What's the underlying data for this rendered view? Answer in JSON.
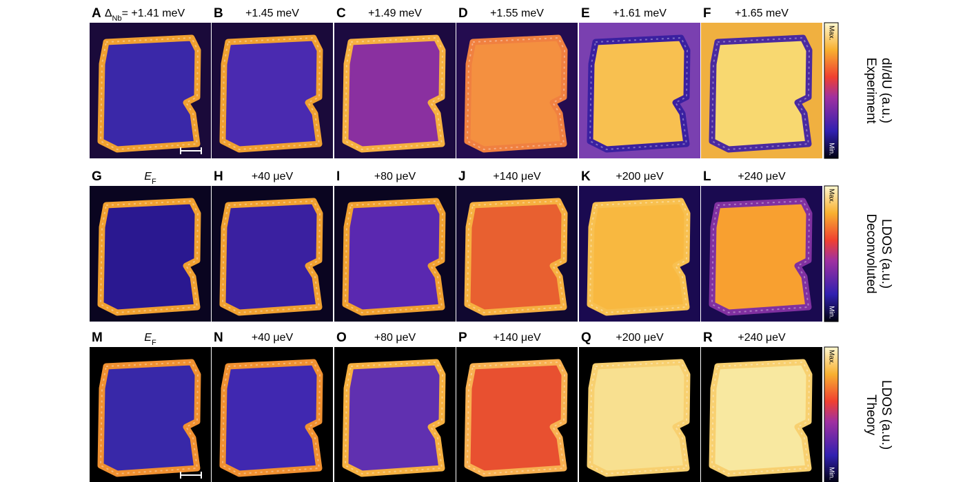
{
  "rows": [
    {
      "title_lines": [
        "Experiment",
        "dI/dU (a.u.)"
      ],
      "cb_max": "Max.",
      "cb_min": "Min.",
      "panels": [
        {
          "letter": "A",
          "label": [
            {
              "text": "Δ"
            },
            {
              "text": "Nb",
              "sub": true
            },
            {
              "text": "= +1.41 meV"
            }
          ],
          "bg": "#1a0a3a",
          "ring": "#f0a030",
          "fill": "#3a28a8",
          "scalebar": true
        },
        {
          "letter": "B",
          "label": [
            {
              "text": "+1.45 meV"
            }
          ],
          "bg": "#1a0a3a",
          "ring": "#f0a030",
          "fill": "#4a2ab0"
        },
        {
          "letter": "C",
          "label": [
            {
              "text": "+1.49 meV"
            }
          ],
          "bg": "#1c0a40",
          "ring": "#f6b040",
          "fill": "#8a30a0"
        },
        {
          "letter": "D",
          "label": [
            {
              "text": "+1.55 meV"
            }
          ],
          "bg": "#240c50",
          "ring": "#f08040",
          "fill": "#f49040"
        },
        {
          "letter": "E",
          "label": [
            {
              "text": "+1.61 meV"
            }
          ],
          "bg": "#7a40b0",
          "ring": "#3a20a0",
          "fill": "#f8c050"
        },
        {
          "letter": "F",
          "label": [
            {
              "text": "+1.65 meV"
            }
          ],
          "bg": "#f0b040",
          "ring": "#4a2aa0",
          "fill": "#f8d870"
        }
      ]
    },
    {
      "title_lines": [
        "Deconvoluted",
        "LDOS (a.u.)"
      ],
      "cb_max": "Max.",
      "cb_min": "Min.",
      "panels": [
        {
          "letter": "G",
          "label": [
            {
              "text": "E",
              "italic": true
            },
            {
              "text": "F",
              "sub": true
            }
          ],
          "bg": "#0a0520",
          "ring": "#f0a030",
          "fill": "#2a1890"
        },
        {
          "letter": "H",
          "label": [
            {
              "text": "+40 μeV"
            }
          ],
          "bg": "#0a0520",
          "ring": "#f0a030",
          "fill": "#3a20a0"
        },
        {
          "letter": "I",
          "label": [
            {
              "text": "+80 μeV"
            }
          ],
          "bg": "#0a0520",
          "ring": "#f0a030",
          "fill": "#5a28b0"
        },
        {
          "letter": "J",
          "label": [
            {
              "text": "+140 μeV"
            }
          ],
          "bg": "#100830",
          "ring": "#f6b040",
          "fill": "#e86030"
        },
        {
          "letter": "K",
          "label": [
            {
              "text": "+200 μeV"
            }
          ],
          "bg": "#1a0a50",
          "ring": "#f8c050",
          "fill": "#f8b840"
        },
        {
          "letter": "L",
          "label": [
            {
              "text": "+240 μeV"
            }
          ],
          "bg": "#1a0a50",
          "ring": "#8030a0",
          "fill": "#f8a030"
        }
      ]
    },
    {
      "title_lines": [
        "Theory",
        "LDOS (a.u.)"
      ],
      "cb_max": "Max.",
      "cb_min": "Min.",
      "panels": [
        {
          "letter": "M",
          "label": [
            {
              "text": "E",
              "italic": true
            },
            {
              "text": "F",
              "sub": true
            }
          ],
          "bg": "#000000",
          "ring": "#f09030",
          "fill": "#3828a8",
          "scalebar": true
        },
        {
          "letter": "N",
          "label": [
            {
              "text": "+40 μeV"
            }
          ],
          "bg": "#000000",
          "ring": "#f09030",
          "fill": "#4028b0"
        },
        {
          "letter": "O",
          "label": [
            {
              "text": "+80 μeV"
            }
          ],
          "bg": "#000000",
          "ring": "#f6b040",
          "fill": "#6030b0"
        },
        {
          "letter": "P",
          "label": [
            {
              "text": "+140 μeV"
            }
          ],
          "bg": "#000000",
          "ring": "#f8b050",
          "fill": "#e85030"
        },
        {
          "letter": "Q",
          "label": [
            {
              "text": "+200 μeV"
            }
          ],
          "bg": "#000000",
          "ring": "#f8d070",
          "fill": "#f8e090"
        },
        {
          "letter": "R",
          "label": [
            {
              "text": "+240 μeV"
            }
          ],
          "bg": "#000000",
          "ring": "#f8d070",
          "fill": "#f8e8a0"
        }
      ]
    }
  ]
}
